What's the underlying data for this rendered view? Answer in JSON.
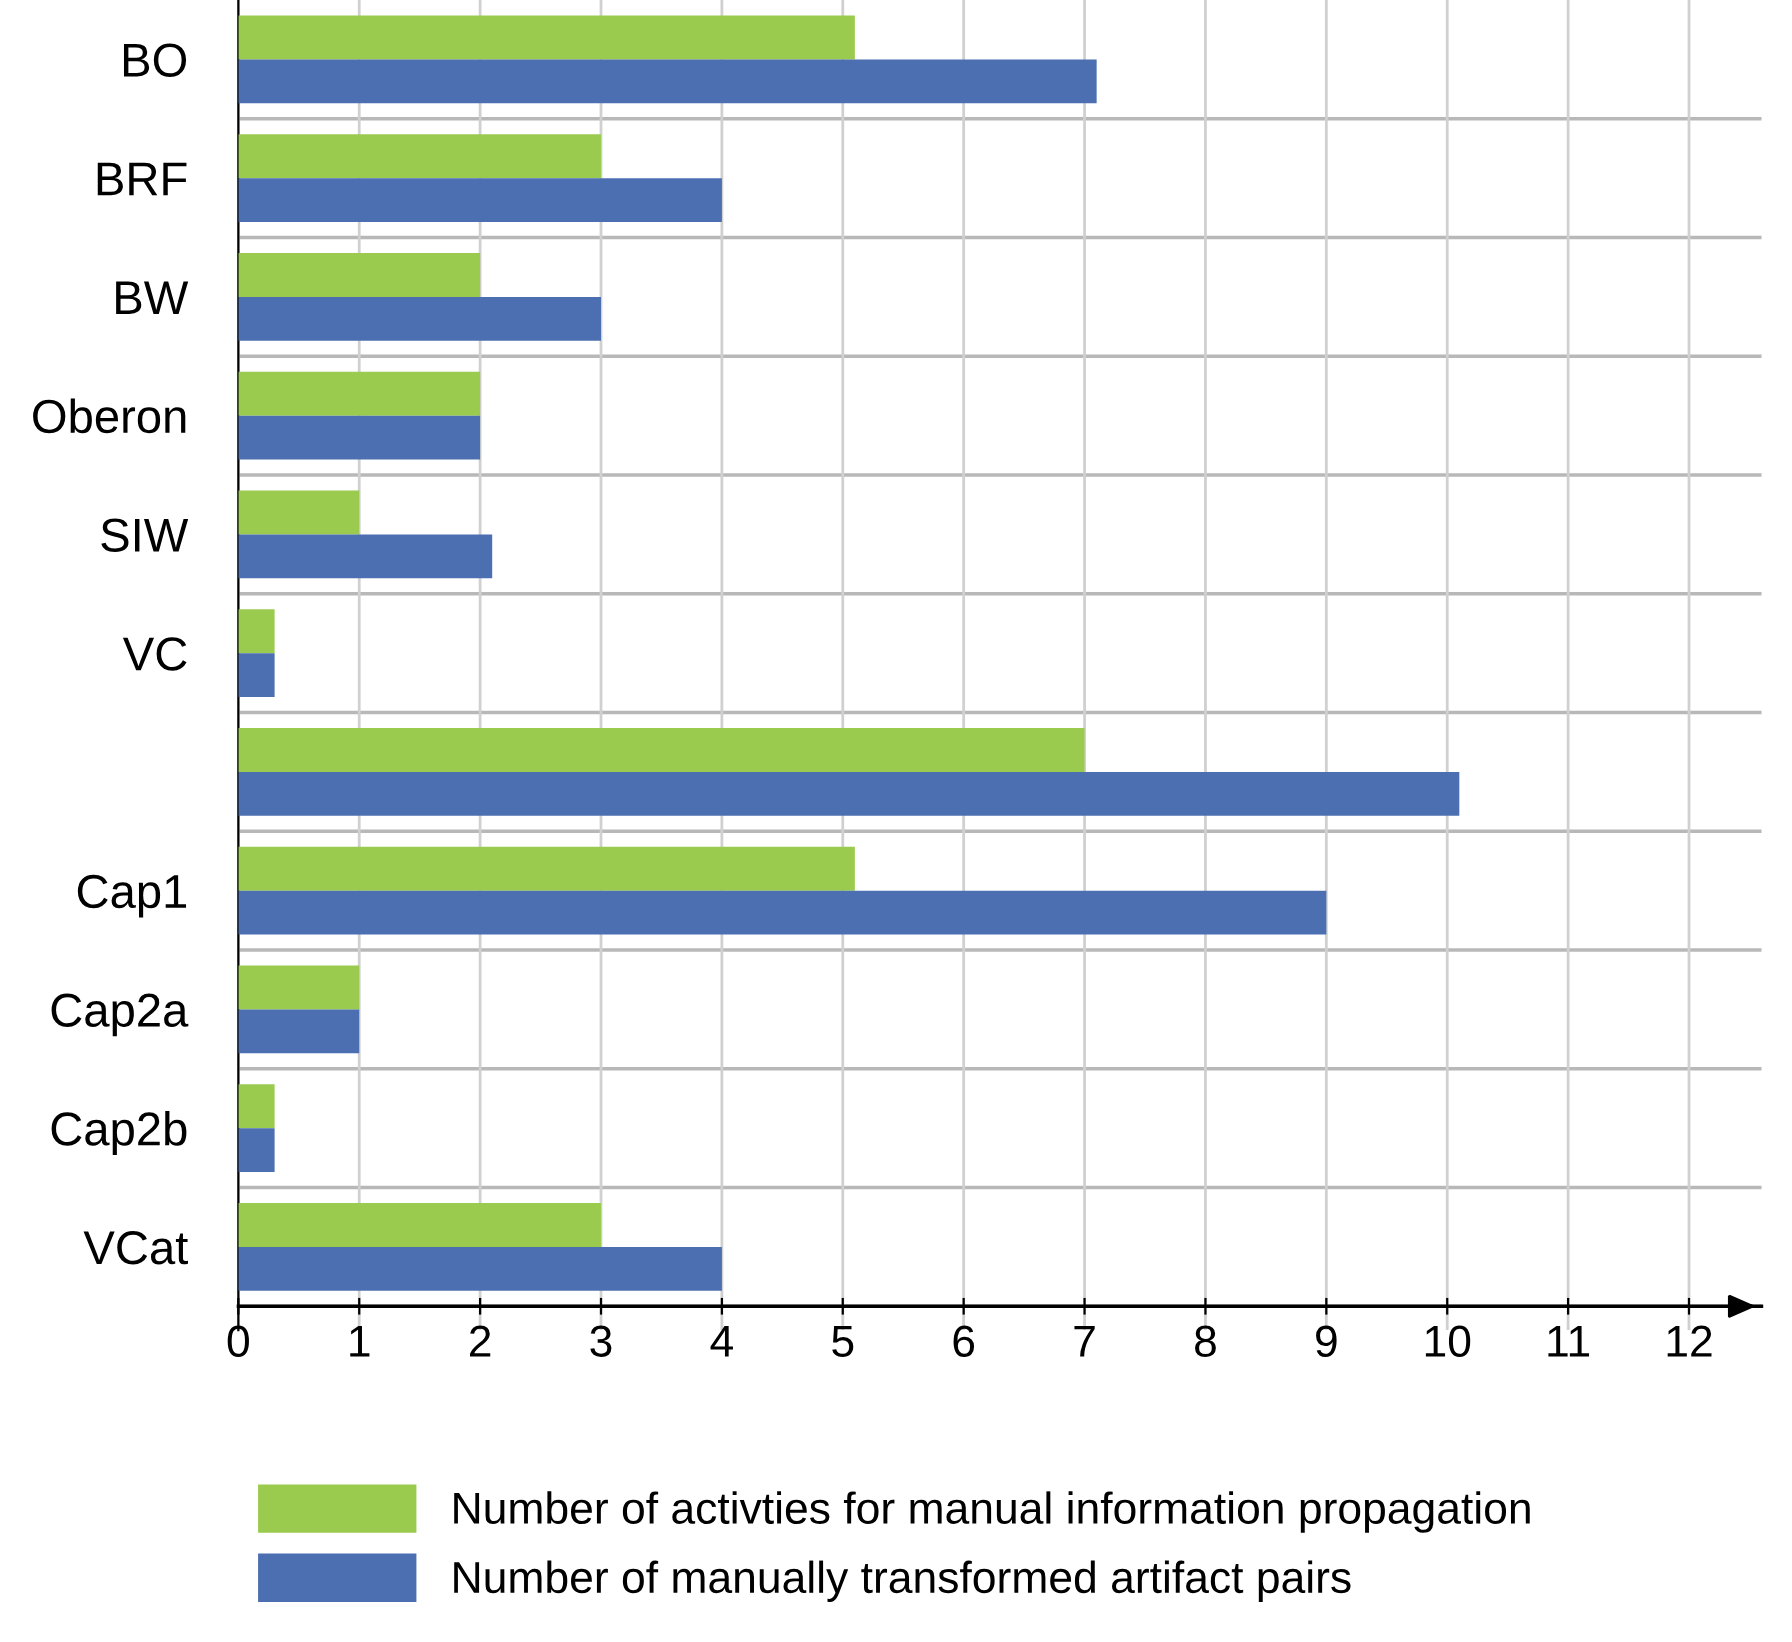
{
  "chart_data": {
    "type": "bar",
    "orientation": "horizontal",
    "categories": [
      "BO",
      "BRF",
      "BW",
      "Oberon",
      "SIW",
      "VC",
      null,
      "Cap1",
      "Cap2a",
      "Cap2b",
      "VCat"
    ],
    "series": [
      {
        "name": "Number of activties for manual information propagation",
        "color": "#9acb4f",
        "values": [
          5.1,
          3,
          2,
          2,
          1,
          0.3,
          7,
          5.1,
          1,
          0.3,
          3
        ]
      },
      {
        "name": "Number of manually transformed artifact pairs",
        "color": "#4b6fb1",
        "values": [
          7.1,
          4,
          3,
          2,
          2.1,
          0.3,
          10.1,
          9,
          1,
          0.3,
          4
        ]
      }
    ],
    "xlim": [
      0,
      12.6
    ],
    "xticks": [
      0,
      1,
      2,
      3,
      4,
      5,
      6,
      7,
      8,
      9,
      10,
      11,
      12
    ],
    "grid": true,
    "legend": "bottom"
  }
}
